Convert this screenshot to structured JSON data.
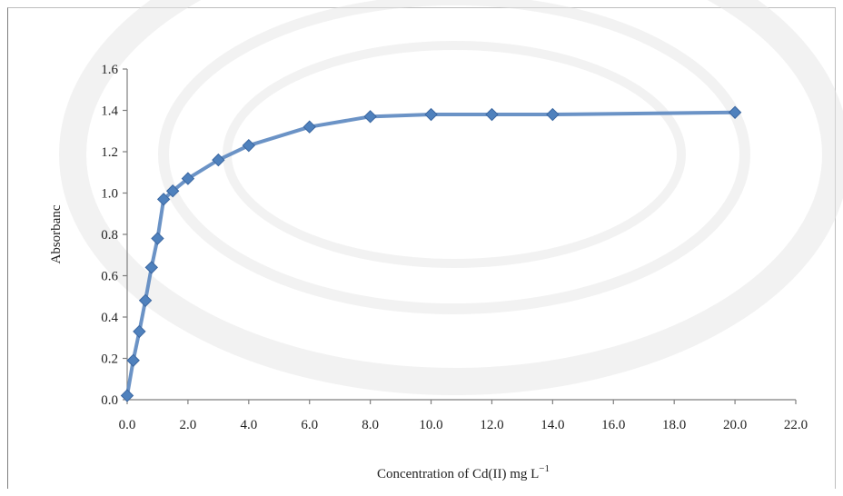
{
  "chart_data": {
    "type": "line",
    "title": "",
    "xlabel": "Concentration of Cd(II) mg L",
    "xlabel_superscript": "−1",
    "ylabel": "Absorbanc",
    "xlim": [
      0,
      22
    ],
    "ylim": [
      0,
      1.6
    ],
    "x_ticks": [
      "0.0",
      "2.0",
      "4.0",
      "6.0",
      "8.0",
      "10.0",
      "12.0",
      "14.0",
      "16.0",
      "18.0",
      "20.0",
      "22.0"
    ],
    "y_ticks": [
      "0.0",
      "0.2",
      "0.4",
      "0.6",
      "0.8",
      "1.0",
      "1.2",
      "1.4",
      "1.6"
    ],
    "grid": false,
    "legend": "none",
    "series": [
      {
        "color": "#4f81bd",
        "x": [
          0.0,
          0.2,
          0.4,
          0.6,
          0.8,
          1.0,
          1.2,
          1.5,
          2.0,
          3.0,
          4.0,
          6.0,
          8.0,
          10.0,
          12.0,
          14.0,
          20.0
        ],
        "y": [
          0.02,
          0.19,
          0.33,
          0.48,
          0.64,
          0.78,
          0.97,
          1.01,
          1.07,
          1.16,
          1.23,
          1.32,
          1.37,
          1.38,
          1.38,
          1.38,
          1.39
        ]
      }
    ]
  }
}
